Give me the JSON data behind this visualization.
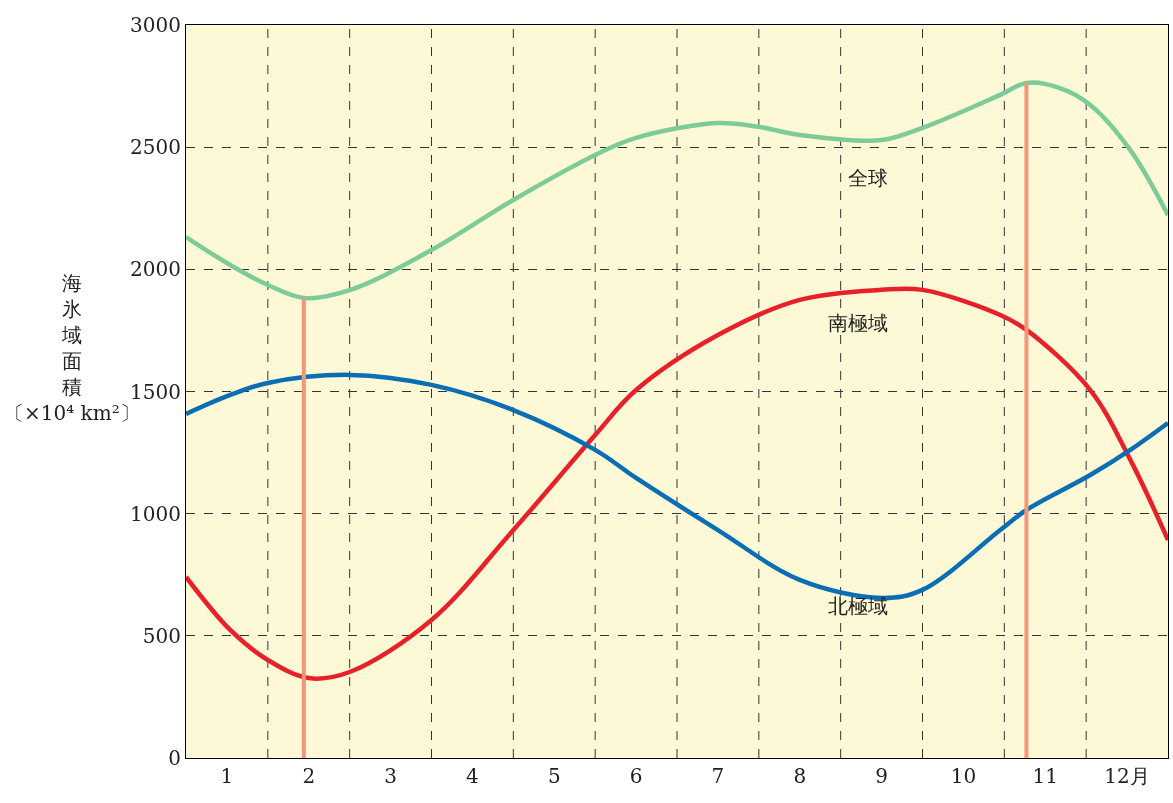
{
  "chart_data": {
    "type": "line",
    "ylabel": "海氷域面積〔×10⁴ km²〕",
    "xlim": [
      0.5,
      12.5
    ],
    "xticks": [
      {
        "value": 1,
        "label": "1"
      },
      {
        "value": 1.5,
        "label": null
      },
      {
        "value": 2,
        "label": "2"
      },
      {
        "value": 2.5,
        "label": null
      },
      {
        "value": 3,
        "label": "3"
      },
      {
        "value": 3.5,
        "label": null
      },
      {
        "value": 4,
        "label": "4"
      },
      {
        "value": 4.5,
        "label": null
      },
      {
        "value": 5,
        "label": "5"
      },
      {
        "value": 5.5,
        "label": null
      },
      {
        "value": 6,
        "label": "6"
      },
      {
        "value": 6.5,
        "label": null
      },
      {
        "value": 7,
        "label": "7"
      },
      {
        "value": 7.5,
        "label": null
      },
      {
        "value": 8,
        "label": "8"
      },
      {
        "value": 8.5,
        "label": null
      },
      {
        "value": 9,
        "label": "9"
      },
      {
        "value": 9.5,
        "label": null
      },
      {
        "value": 10,
        "label": "10"
      },
      {
        "value": 10.5,
        "label": null
      },
      {
        "value": 11,
        "label": "11"
      },
      {
        "value": 11.5,
        "label": null
      },
      {
        "value": 12,
        "label": "12月"
      }
    ],
    "ylim": [
      0,
      3000
    ],
    "yticks": [
      0,
      500,
      1000,
      1500,
      2000,
      2500,
      3000
    ],
    "grid": true,
    "marker": "none",
    "line_style": "solid",
    "series": [
      {
        "color": "#7dcb98",
        "x": [
          0.5,
          1.04,
          1.5,
          1.94,
          2.5,
          3.5,
          4.5,
          5.5,
          6,
          7,
          7.5,
          8,
          9,
          9.5,
          10.45,
          10.77,
          11.18,
          11.55,
          12.04,
          12.5
        ],
        "values": [
          2132,
          2018,
          1936,
          1883,
          1915,
          2079,
          2284,
          2468,
          2538,
          2599,
          2583,
          2550,
          2529,
          2579,
          2714,
          2763,
          2742,
          2673,
          2488,
          2222
        ]
      },
      {
        "color": "#e8202a",
        "x": [
          0.5,
          1.04,
          1.5,
          2.0,
          2.5,
          3.5,
          4.5,
          5.5,
          6,
          7,
          8,
          9,
          9.5,
          10.45,
          10.77,
          11.55,
          12.04,
          12.5
        ],
        "values": [
          741,
          524,
          401,
          327,
          352,
          565,
          933,
          1322,
          1506,
          1731,
          1875,
          1916,
          1916,
          1813,
          1752,
          1506,
          1220,
          892
        ]
      },
      {
        "color": "#0a6eb4",
        "x": [
          0.5,
          1.04,
          1.5,
          2.5,
          3.5,
          4.5,
          5.5,
          6,
          7,
          8,
          9,
          9.5,
          10.45,
          10.77,
          11.55,
          12.04,
          12.5
        ],
        "values": [
          1408,
          1486,
          1535,
          1568,
          1527,
          1424,
          1261,
          1146,
          933,
          729,
          655,
          688,
          933,
          1015,
          1158,
          1261,
          1371
        ]
      },
      {
        "color": "#f5957a",
        "x": [
          1.94,
          1.94
        ],
        "values": [
          0,
          1883
        ]
      },
      {
        "color": "#f5957a",
        "x": [
          10.77,
          10.77
        ],
        "values": [
          0,
          2763
        ]
      }
    ],
    "annotations": [
      "全球",
      "南極域",
      "北極域"
    ]
  }
}
